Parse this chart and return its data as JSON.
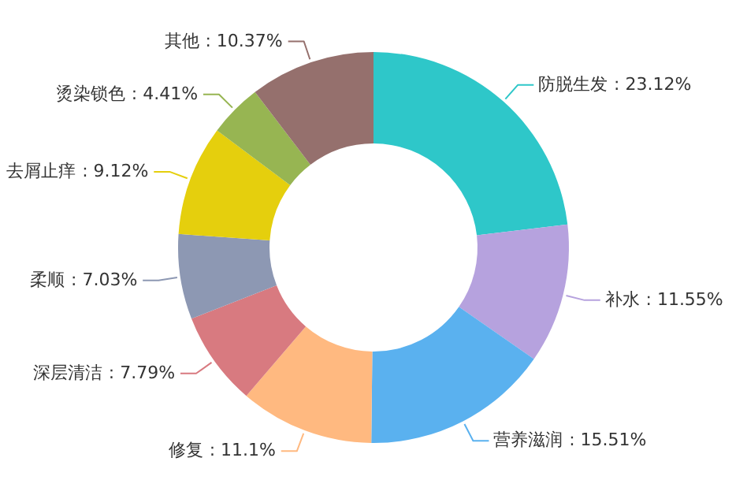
{
  "chart_data": {
    "type": "donut",
    "value_labels": [
      ": 23.12%",
      ": 11.55%",
      ": 15.51%",
      ": 11.1%",
      ": 7.79%",
      ": 7.03%",
      ": 9.12%",
      ": 4.41%",
      ": 10.37%"
    ],
    "categories": [
      "防脱生发",
      "补水",
      "营养滋润",
      "修复",
      "深层清洁",
      "柔顺",
      "去屑止痒",
      "烫染锁色",
      "其他"
    ],
    "values": [
      23.12,
      11.55,
      15.51,
      11.1,
      7.79,
      7.03,
      9.12,
      4.41,
      10.37
    ],
    "colors": [
      "#2ec7c9",
      "#b6a2de",
      "#5ab1ef",
      "#ffb980",
      "#d87a80",
      "#8d98b3",
      "#e5cf0d",
      "#97b552",
      "#95706d"
    ]
  }
}
